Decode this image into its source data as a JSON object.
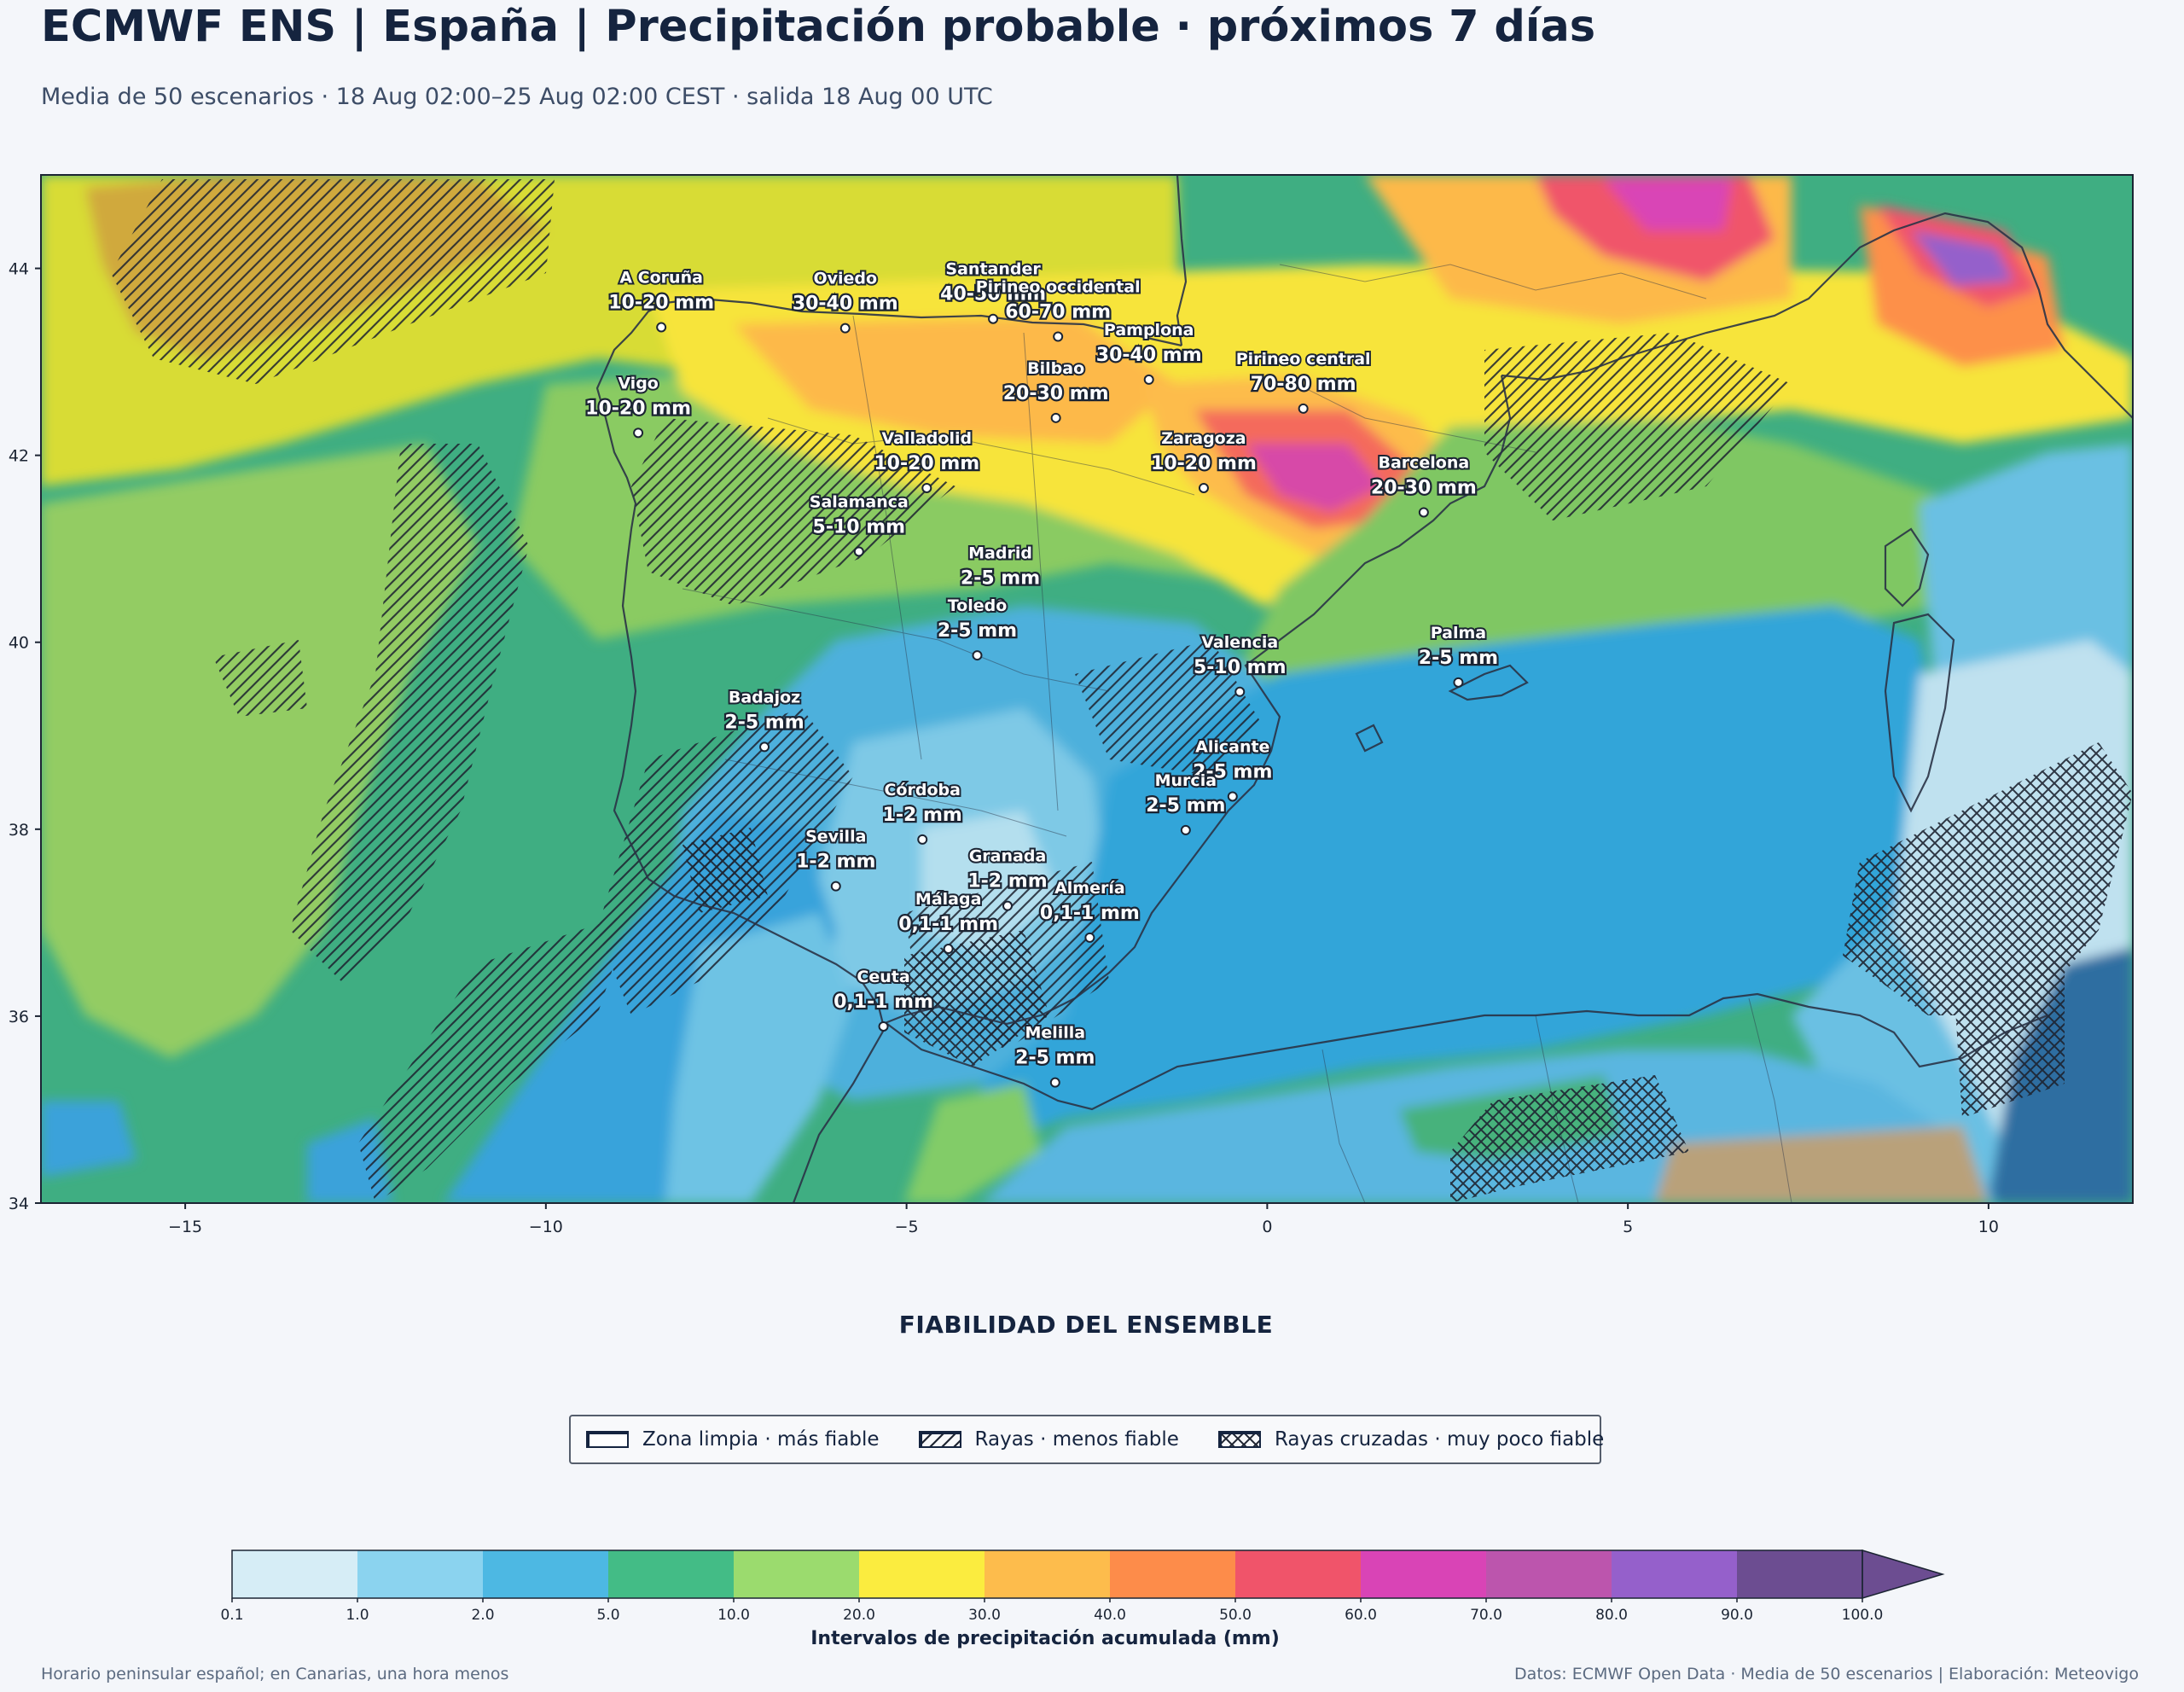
{
  "header": {
    "title": "ECMWF ENS | España | Precipitación probable · próximos 7 días",
    "subtitle": "Media de 50 escenarios · 18 Aug 02:00–25 Aug 02:00 CEST · salida 18 Aug 00 UTC"
  },
  "map": {
    "lon_range": [
      -17,
      12
    ],
    "lat_range": [
      34,
      45
    ],
    "x_ticks": [
      "−15",
      "−10",
      "−5",
      "0",
      "5",
      "10"
    ],
    "x_tick_values": [
      -15,
      -10,
      -5,
      0,
      5,
      10
    ],
    "y_ticks": [
      "34",
      "36",
      "38",
      "40",
      "42",
      "44"
    ],
    "y_tick_values": [
      34,
      36,
      38,
      40,
      42,
      44
    ],
    "cities": [
      {
        "name": "A Coruña",
        "value": "10-20 mm",
        "lon": -8.4,
        "lat": 43.37
      },
      {
        "name": "Oviedo",
        "value": "30-40 mm",
        "lon": -5.85,
        "lat": 43.36
      },
      {
        "name": "Santander",
        "value": "40-50 mm",
        "lon": -3.8,
        "lat": 43.46
      },
      {
        "name": "Pirineo occidental",
        "value": "60-70 mm",
        "lon": -2.9,
        "lat": 43.27
      },
      {
        "name": "Pamplona",
        "value": "30-40 mm",
        "lon": -1.64,
        "lat": 42.81
      },
      {
        "name": "Pirineo central",
        "value": "70-80 mm",
        "lon": 0.5,
        "lat": 42.5
      },
      {
        "name": "Bilbao",
        "value": "20-30 mm",
        "lon": -2.93,
        "lat": 42.4
      },
      {
        "name": "Vigo",
        "value": "10-20 mm",
        "lon": -8.72,
        "lat": 42.24
      },
      {
        "name": "Valladolid",
        "value": "10-20 mm",
        "lon": -4.72,
        "lat": 41.65
      },
      {
        "name": "Zaragoza",
        "value": "10-20 mm",
        "lon": -0.88,
        "lat": 41.65
      },
      {
        "name": "Barcelona",
        "value": "20-30 mm",
        "lon": 2.17,
        "lat": 41.39
      },
      {
        "name": "Salamanca",
        "value": "5-10 mm",
        "lon": -5.66,
        "lat": 40.97
      },
      {
        "name": "Madrid",
        "value": "2-5 mm",
        "lon": -3.7,
        "lat": 40.42
      },
      {
        "name": "Valencia",
        "value": "5-10 mm",
        "lon": -0.38,
        "lat": 39.47
      },
      {
        "name": "Toledo",
        "value": "2-5 mm",
        "lon": -4.02,
        "lat": 39.86
      },
      {
        "name": "Badajoz",
        "value": "2-5 mm",
        "lon": -6.97,
        "lat": 38.88
      },
      {
        "name": "Palma",
        "value": "2-5 mm",
        "lon": 2.65,
        "lat": 39.57
      },
      {
        "name": "Córdoba",
        "value": "1-2 mm",
        "lon": -4.78,
        "lat": 37.89
      },
      {
        "name": "Alicante",
        "value": "2-5 mm",
        "lon": -0.48,
        "lat": 38.35
      },
      {
        "name": "Murcia",
        "value": "2-5 mm",
        "lon": -1.13,
        "lat": 37.99
      },
      {
        "name": "Granada",
        "value": "1-2 mm",
        "lon": -3.6,
        "lat": 37.18
      },
      {
        "name": "Sevilla",
        "value": "1-2 mm",
        "lon": -5.98,
        "lat": 37.39
      },
      {
        "name": "Málaga",
        "value": "0,1-1 mm",
        "lon": -4.42,
        "lat": 36.72
      },
      {
        "name": "Almería",
        "value": "0,1-1 mm",
        "lon": -2.46,
        "lat": 36.84
      },
      {
        "name": "Ceuta",
        "value": "0,1-1 mm",
        "lon": -5.32,
        "lat": 35.89
      },
      {
        "name": "Melilla",
        "value": "2-5 mm",
        "lon": -2.94,
        "lat": 35.29
      }
    ]
  },
  "reliability": {
    "title": "FIABILIDAD DEL ENSEMBLE",
    "items": [
      {
        "label": "Zona limpia · más fiable",
        "pattern": "none"
      },
      {
        "label": "Rayas · menos fiable",
        "pattern": "hatch"
      },
      {
        "label": "Rayas cruzadas · muy poco fiable",
        "pattern": "crosshatch"
      }
    ]
  },
  "colorbar": {
    "label": "Intervalos de precipitación acumulada (mm)",
    "ticks": [
      "0.1",
      "1.0",
      "2.0",
      "5.0",
      "10.0",
      "20.0",
      "30.0",
      "40.0",
      "50.0",
      "60.0",
      "70.0",
      "80.0",
      "90.0",
      "100.0"
    ],
    "colors": [
      "#d6edf6",
      "#8bd3ef",
      "#4db8e3",
      "#43bc86",
      "#9bdb6e",
      "#fbec3f",
      "#fdbc4c",
      "#fd8c4a",
      "#f0546a",
      "#d944b6",
      "#bc55ad",
      "#9560cb",
      "#6c4d91"
    ],
    "extend_color": "#6c4d91"
  },
  "footer": {
    "left": "Horario peninsular español; en Canarias, una hora menos",
    "right": "Datos: ECMWF Open Data · Media de 50 escenarios | Elaboración: Meteovigo"
  }
}
